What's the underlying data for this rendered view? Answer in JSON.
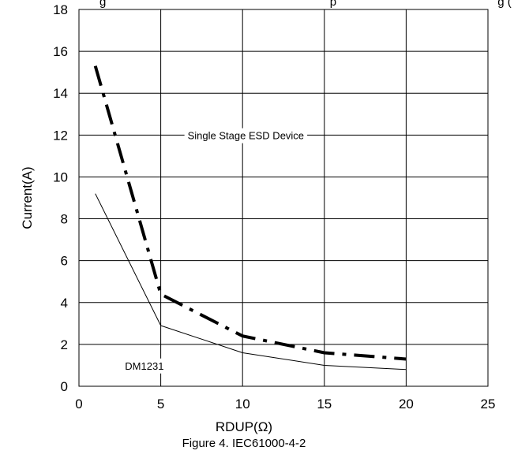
{
  "chart_data": {
    "type": "line",
    "title": "",
    "top_text_visible": "g                                                                    p                                                 g (           )",
    "xlabel": "RDUP(Ω)",
    "ylabel": "Current(A)",
    "caption": "Figure 4. IEC61000-4-2",
    "xlim": [
      0,
      25
    ],
    "ylim": [
      0,
      18
    ],
    "x_ticks": [
      0,
      5,
      10,
      15,
      20,
      25
    ],
    "y_ticks": [
      0,
      2,
      4,
      6,
      8,
      10,
      12,
      14,
      16,
      18
    ],
    "grid": true,
    "series": [
      {
        "name": "Single Stage ESD Device",
        "style": "dash-dot",
        "color": "#000000",
        "x": [
          1,
          5,
          10,
          15,
          20
        ],
        "y": [
          15.3,
          4.4,
          2.4,
          1.6,
          1.3
        ]
      },
      {
        "name": "DM1231",
        "style": "solid",
        "color": "#000000",
        "x": [
          1,
          5,
          10,
          15,
          20
        ],
        "y": [
          9.2,
          2.9,
          1.6,
          1.0,
          0.8
        ]
      }
    ],
    "annotations": [
      {
        "text": "Single Stage ESD Device",
        "x": 10.2,
        "y": 11.8
      },
      {
        "text": "DM1231",
        "x": 4.0,
        "y": 0.8
      }
    ]
  }
}
